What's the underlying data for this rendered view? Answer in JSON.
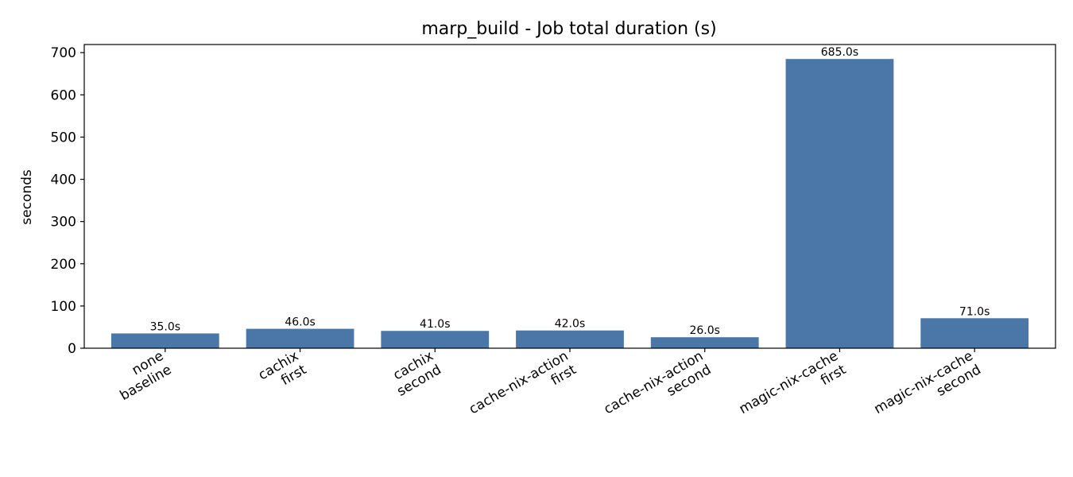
{
  "chart_data": {
    "type": "bar",
    "title": "marp_build - Job total duration (s)",
    "xlabel": "",
    "ylabel": "seconds",
    "categories": [
      [
        "none",
        "baseline"
      ],
      [
        "cachix",
        "first"
      ],
      [
        "cachix",
        "second"
      ],
      [
        "cache-nix-action",
        "first"
      ],
      [
        "cache-nix-action",
        "second"
      ],
      [
        "magic-nix-cache",
        "first"
      ],
      [
        "magic-nix-cache",
        "second"
      ]
    ],
    "values": [
      35.0,
      46.0,
      41.0,
      42.0,
      26.0,
      685.0,
      71.0
    ],
    "data_labels": [
      "35.0s",
      "46.0s",
      "41.0s",
      "42.0s",
      "26.0s",
      "685.0s",
      "71.0s"
    ],
    "ylim": [
      0,
      719.25
    ],
    "yticks": [
      0,
      100,
      200,
      300,
      400,
      500,
      600,
      700
    ],
    "bar_color": "#4a76a8",
    "grid": false,
    "legend": "none"
  }
}
